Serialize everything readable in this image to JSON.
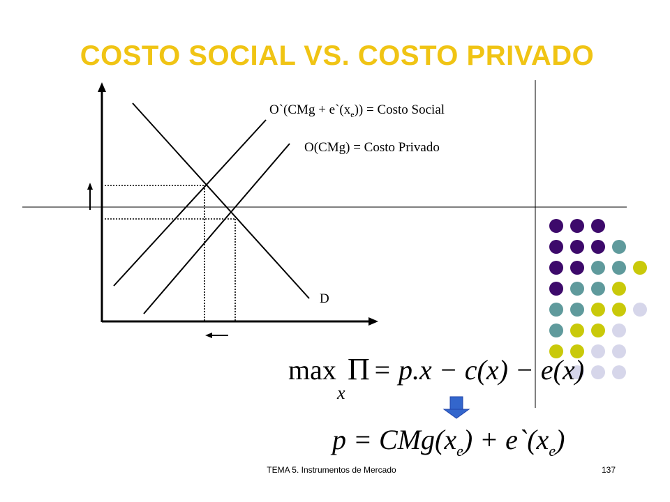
{
  "slide": {
    "title": "COSTO SOCIAL VS. COSTO PRIVADO",
    "footer_text": "TEMA 5. Instrumentos de Mercado",
    "page_number": "137"
  },
  "diagram": {
    "social_cost_label_prefix": "O`(CMg + e`(x",
    "social_cost_label_sub": "e",
    "social_cost_label_suffix": ")) = Costo Social",
    "private_cost_label": "O(CMg) = Costo Privado",
    "demand_label": "D"
  },
  "equations": {
    "eq1_max": "max",
    "eq1_pi": "Π",
    "eq1_rhs": "= p.x − c(x) − e(x)",
    "eq1_sub": "x",
    "eq2_lhs": "p = CMg(x",
    "eq2_sub1": "e",
    "eq2_mid": ") + e`(x",
    "eq2_sub2": "e",
    "eq2_end": ")"
  },
  "colors": {
    "title": "#f0c414",
    "dot_purple": "#3d0a6b",
    "dot_teal": "#5f9a9c",
    "dot_olive": "#c9c90a",
    "dot_lavender": "#d6d6ea",
    "arrow_blue": "#3366cc"
  }
}
